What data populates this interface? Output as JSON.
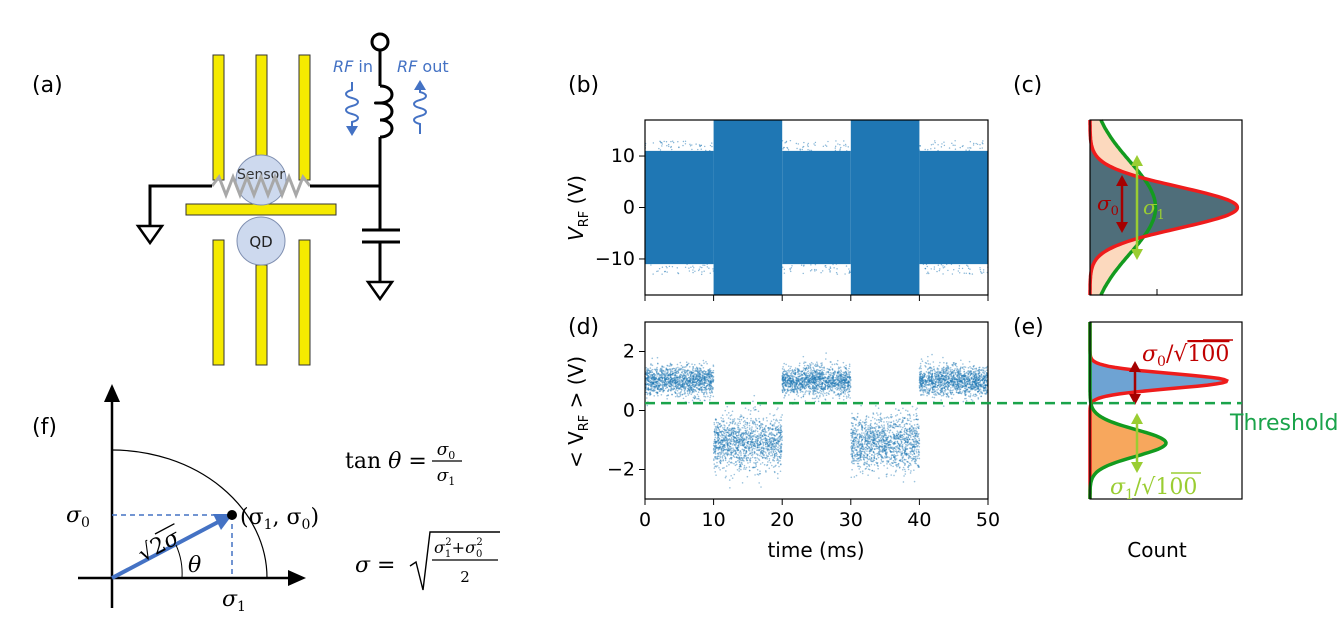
{
  "panel_labels": {
    "a": "(a)",
    "b": "(b)",
    "c": "(c)",
    "d": "(d)",
    "e": "(e)",
    "f": "(f)"
  },
  "circuit": {
    "rf_in_sym": "RF",
    "rf_in_txt": " in",
    "rf_out_sym": "RF",
    "rf_out_txt": " out",
    "sensor": "Sensor",
    "qd": "QD",
    "colors": {
      "gate": "#f5ea00",
      "wire": "#000000",
      "rf": "#4472c4",
      "island": "#cdd9ee"
    }
  },
  "chart_data": [
    {
      "id": "b",
      "type": "scatter",
      "title": "",
      "xlabel": "time (ms)",
      "ylabel_main": "V",
      "ylabel_sub": "RF",
      "ylabel_unit": " (V)",
      "xlim": [
        0,
        50
      ],
      "ylim": [
        -17,
        17
      ],
      "yticks": [
        "10",
        "0",
        "−10"
      ],
      "ytick_values": [
        10,
        0,
        -10
      ],
      "xticks_values": [
        0,
        10,
        20,
        30,
        40,
        50
      ],
      "segments": [
        {
          "x": [
            0,
            10
          ],
          "state": "0",
          "band": [
            -11,
            11
          ],
          "sparse_max": 13
        },
        {
          "x": [
            10,
            20
          ],
          "state": "1",
          "band": [
            -17,
            17
          ]
        },
        {
          "x": [
            20,
            30
          ],
          "state": "0",
          "band": [
            -11,
            11
          ],
          "sparse_max": 13
        },
        {
          "x": [
            30,
            40
          ],
          "state": "1",
          "band": [
            -17,
            17
          ]
        },
        {
          "x": [
            40,
            50
          ],
          "state": "0",
          "band": [
            -11,
            11
          ],
          "sparse_max": 13
        }
      ],
      "color": "#1f77b4"
    },
    {
      "id": "d",
      "type": "scatter",
      "title": "",
      "xlabel": "time (ms)",
      "ylabel_pre": "< V",
      "ylabel_sub": "RF",
      "ylabel_post": " > (V)",
      "xlim": [
        0,
        50
      ],
      "ylim": [
        -3,
        3
      ],
      "xticks": [
        "0",
        "10",
        "20",
        "30",
        "40",
        "50"
      ],
      "xtick_values": [
        0,
        10,
        20,
        30,
        40,
        50
      ],
      "yticks": [
        "2",
        "0",
        "−2"
      ],
      "ytick_values": [
        2,
        0,
        -2
      ],
      "segments": [
        {
          "x": [
            0,
            10
          ],
          "mean": 1.0,
          "sd": 0.25
        },
        {
          "x": [
            10,
            20
          ],
          "mean": -1.1,
          "sd": 0.45
        },
        {
          "x": [
            20,
            30
          ],
          "mean": 1.0,
          "sd": 0.25
        },
        {
          "x": [
            30,
            40
          ],
          "mean": -1.1,
          "sd": 0.45
        },
        {
          "x": [
            40,
            50
          ],
          "mean": 1.0,
          "sd": 0.25
        }
      ],
      "threshold": 0.25,
      "threshold_label": "Threshold",
      "colors": {
        "points": "#1f77b4",
        "threshold": "#1aa34a"
      }
    },
    {
      "id": "c",
      "type": "area",
      "title": "",
      "orientation": "horizontal histogram",
      "series": [
        {
          "name": "",
          "mean": 0,
          "sd": 4,
          "edge": "#ee1c1c",
          "fill": "#4f6e7a"
        },
        {
          "name": "",
          "mean": 0,
          "sd": 9,
          "edge": "#139b1f",
          "fill": "#fcd9be"
        }
      ],
      "ylim": [
        -17,
        17
      ],
      "annotations": {
        "sigma0": "σ",
        "sigma0_sub": "0",
        "sigma1": "σ",
        "sigma1_sub": "1"
      },
      "annot_colors": {
        "sigma0": "#a50000",
        "sigma1": "#9acd32"
      }
    },
    {
      "id": "e",
      "type": "area",
      "title": "",
      "orientation": "horizontal histogram",
      "xlabel": "Count",
      "series": [
        {
          "name": "",
          "mean": 1.0,
          "sd": 0.25,
          "edge": "#ee1c1c",
          "fill": "#6ea3d3"
        },
        {
          "name": "",
          "mean": -1.1,
          "sd": 0.45,
          "edge": "#139b1f",
          "fill": "#f7a75d"
        }
      ],
      "ylim": [
        -3,
        3
      ],
      "annotations": {
        "s0": "σ",
        "s0_sub": "0",
        "s0_div": "/",
        "s0_n": "100",
        "s1": "σ",
        "s1_sub": "1",
        "s1_div": "/",
        "s1_n": "100"
      },
      "annot_colors": {
        "s0": "#c00000",
        "s1": "#9acd32"
      }
    }
  ],
  "polar": {
    "sigma0": "σ",
    "sigma0_sub": "0",
    "sigma1": "σ",
    "sigma1_sub": "1",
    "point": "(σ",
    "point_sub1": "1",
    "point_mid": ", σ",
    "point_sub0": "0",
    "point_end": ")",
    "vec_root": "2",
    "vec_sigma": "σ",
    "theta": "θ",
    "tan_lhs": "tan",
    "tan_theta": "θ",
    " tan_eq": "=",
    "frac_num": "σ",
    "frac_num_sub": "0",
    "frac_den": "σ",
    "frac_den_sub": "1",
    "sig_lhs": "σ",
    "sig_eq": "=",
    "rad_a": "σ",
    "rad_a_sub": "1",
    "rad_a_sup": "2",
    "rad_plus": "+",
    "rad_b": "σ",
    "rad_b_sub": "0",
    "rad_b_sup": "2",
    "rad_den": "2",
    "vec_color": "#4472c4"
  }
}
